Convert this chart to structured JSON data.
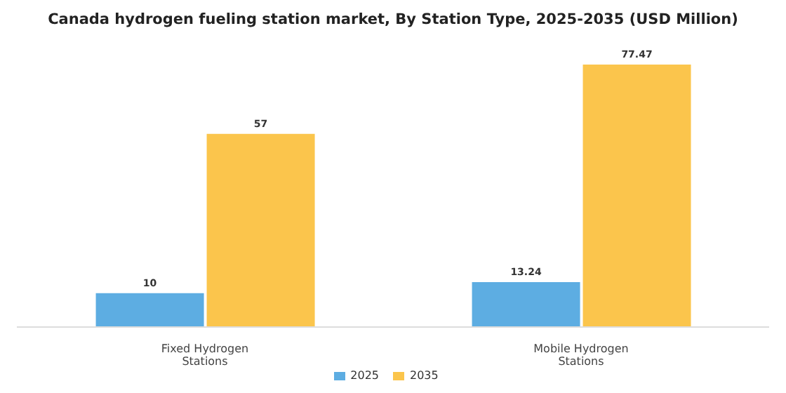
{
  "chart_data": {
    "type": "bar",
    "title": "Canada hydrogen fueling station market, By Station Type, 2025-2035 (USD Million)",
    "categories": [
      "Fixed Hydrogen Stations",
      "Mobile Hydrogen Stations"
    ],
    "series": [
      {
        "name": "2025",
        "color": "#5dade2",
        "values": [
          10,
          13.24
        ]
      },
      {
        "name": "2035",
        "color": "#fbc54c",
        "values": [
          57,
          77.47
        ]
      }
    ],
    "data_labels": true,
    "legend": "bottom",
    "grid": false
  }
}
